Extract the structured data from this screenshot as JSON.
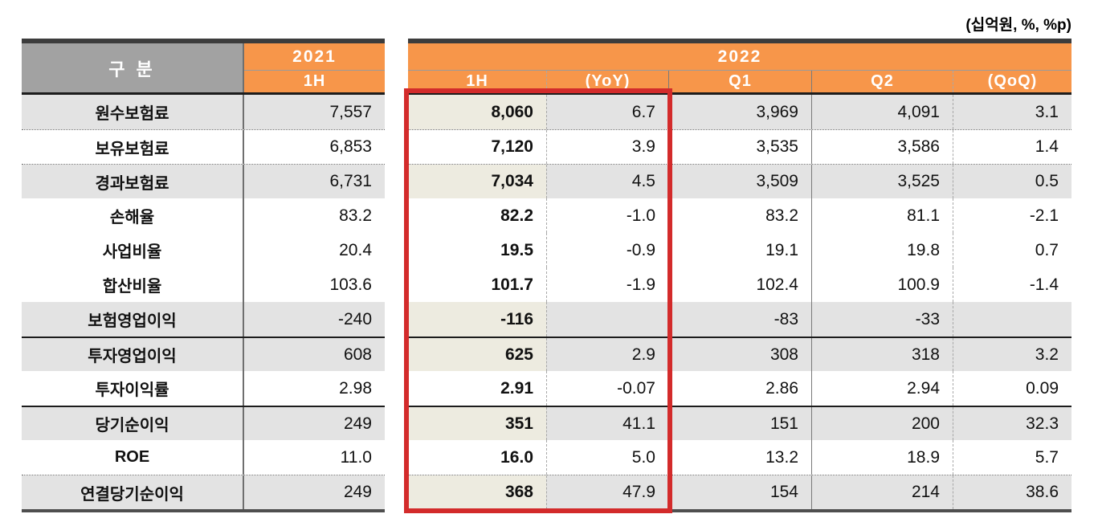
{
  "unit_note": "(십억원, %, %p)",
  "colors": {
    "orange": "#F7964A",
    "header_gray": "#A2A2A2",
    "row_gray": "#E3E3E3",
    "highlight_column_beige": "#EDEBE0",
    "highlight_box_red": "#D32B2B"
  },
  "table": {
    "left": {
      "header_col": "구 분",
      "year": "2021",
      "sub": "1H"
    },
    "right": {
      "year": "2022",
      "subs": [
        "1H",
        "(YoY)",
        "Q1",
        "Q2",
        "(QoQ)"
      ]
    },
    "rows": [
      {
        "label": "원수보험료",
        "y2021": "7,557",
        "h1": "8,060",
        "yoy": "6.7",
        "q1": "3,969",
        "q2": "4,091",
        "qoq": "3.1",
        "shade": true
      },
      {
        "label": "보유보험료",
        "y2021": "6,853",
        "h1": "7,120",
        "yoy": "3.9",
        "q1": "3,535",
        "q2": "3,586",
        "qoq": "1.4",
        "shade": false
      },
      {
        "label": "경과보험료",
        "y2021": "6,731",
        "h1": "7,034",
        "yoy": "4.5",
        "q1": "3,509",
        "q2": "3,525",
        "qoq": "0.5",
        "shade": true
      },
      {
        "label": "손해율",
        "y2021": "83.2",
        "h1": "82.2",
        "yoy": "-1.0",
        "q1": "83.2",
        "q2": "81.1",
        "qoq": "-2.1",
        "shade": false
      },
      {
        "label": "사업비율",
        "y2021": "20.4",
        "h1": "19.5",
        "yoy": "-0.9",
        "q1": "19.1",
        "q2": "19.8",
        "qoq": "0.7",
        "shade": false
      },
      {
        "label": "합산비율",
        "y2021": "103.6",
        "h1": "101.7",
        "yoy": "-1.9",
        "q1": "102.4",
        "q2": "100.9",
        "qoq": "-1.4",
        "shade": false
      },
      {
        "label": "보험영업이익",
        "y2021": "-240",
        "h1": "-116",
        "yoy": "",
        "q1": "-83",
        "q2": "-33",
        "qoq": "",
        "shade": true
      },
      {
        "label": "투자영업이익",
        "y2021": "608",
        "h1": "625",
        "yoy": "2.9",
        "q1": "308",
        "q2": "318",
        "qoq": "3.2",
        "shade": true
      },
      {
        "label": "투자이익률",
        "y2021": "2.98",
        "h1": "2.91",
        "yoy": "-0.07",
        "q1": "2.86",
        "q2": "2.94",
        "qoq": "0.09",
        "shade": false
      },
      {
        "label": "당기순이익",
        "y2021": "249",
        "h1": "351",
        "yoy": "41.1",
        "q1": "151",
        "q2": "200",
        "qoq": "32.3",
        "shade": true
      },
      {
        "label": "ROE",
        "y2021": "11.0",
        "h1": "16.0",
        "yoy": "5.0",
        "q1": "13.2",
        "q2": "18.9",
        "qoq": "5.7",
        "shade": false
      },
      {
        "label": "연결당기순이익",
        "y2021": "249",
        "h1": "368",
        "yoy": "47.9",
        "q1": "154",
        "q2": "214",
        "qoq": "38.6",
        "shade": true
      }
    ]
  }
}
